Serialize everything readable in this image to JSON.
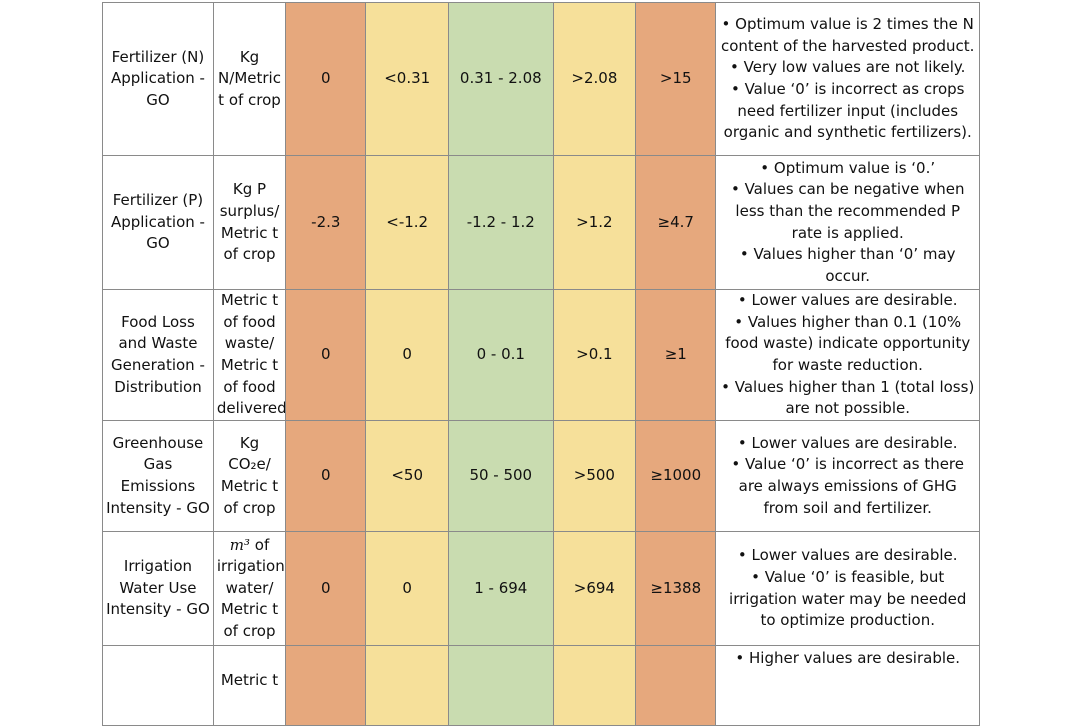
{
  "rows": [
    {
      "name": "Fertilizer (N) Application - GO",
      "unit": "Kg N/Metric t of crop",
      "v1": "0",
      "v2": "<0.31",
      "v3": "0.31 - 2.08",
      "v4": ">2.08",
      "v5": ">15",
      "notes": [
        "• Optimum value is 2 times the N content of the harvested product.",
        "• Very low values are not likely.",
        "• Value ‘0’ is incorrect as crops need fertilizer input (includes organic and synthetic fertilizers)."
      ]
    },
    {
      "name": "Fertilizer (P) Application - GO",
      "unit": "Kg P surplus/ Metric t of crop",
      "v1": "-2.3",
      "v2": "<-1.2",
      "v3": "-1.2 - 1.2",
      "v4": ">1.2",
      "v5": "≥4.7",
      "notes": [
        "• Optimum value is ‘0.’",
        "• Values can be negative when less than the recommended P rate is applied.",
        "• Values higher than ‘0’ may occur."
      ]
    },
    {
      "name": "Food Loss and Waste Generation - Distribution",
      "unit": "Metric t of food waste/ Metric t of food delivered",
      "v1": "0",
      "v2": "0",
      "v3": "0 - 0.1",
      "v4": ">0.1",
      "v5": "≥1",
      "notes": [
        "• Lower values are desirable.",
        "• Values higher than 0.1 (10% food waste) indicate opportunity for waste reduction.",
        "• Values higher than 1 (total loss) are not possible."
      ]
    },
    {
      "name": "Greenhouse Gas Emissions Intensity - GO",
      "unit": "Kg CO₂e/ Metric t of crop",
      "v1": "0",
      "v2": "<50",
      "v3": "50 - 500",
      "v4": ">500",
      "v5": "≥1000",
      "notes": [
        "• Lower values are desirable.",
        "• Value ‘0’ is incorrect as there are always emissions of GHG from soil and fertilizer."
      ]
    },
    {
      "name": "Irrigation Water Use Intensity - GO",
      "unit_symbol": "m³",
      "unit": "of irrigation water/ Metric t of crop",
      "v1": "0",
      "v2": "0",
      "v3": "1 - 694",
      "v4": ">694",
      "v5": "≥1388",
      "notes": [
        "• Lower values are desirable.",
        "• Value ‘0’ is feasible, but irrigation water may be needed to optimize production."
      ]
    },
    {
      "unit_partial": "Metric t",
      "notes": [
        "• Higher values are desirable."
      ]
    }
  ]
}
